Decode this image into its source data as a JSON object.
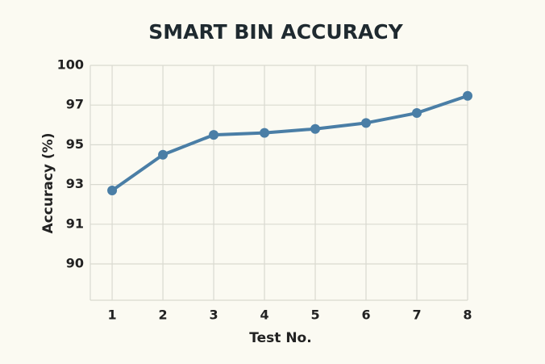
{
  "chart_data": {
    "type": "line",
    "title": "SMART BIN ACCURACY",
    "x_label": "Test No.",
    "y_label": "Accuracy (%)",
    "x": [
      1,
      2,
      3,
      4,
      5,
      6,
      7,
      8
    ],
    "series": [
      {
        "name": "Accuracy",
        "color": "#4a7ea6",
        "values": [
          92.7,
          94.5,
          95.5,
          95.6,
          95.8,
          96.1,
          96.6,
          97.7
        ]
      }
    ],
    "xlim": [
      0.57,
      8
    ],
    "xticks": [
      1,
      2,
      3,
      4,
      5,
      6,
      7,
      8
    ],
    "ylim": [
      89.1,
      100
    ],
    "yticks": [
      100,
      97,
      95,
      93,
      91,
      90
    ],
    "grid": true
  }
}
